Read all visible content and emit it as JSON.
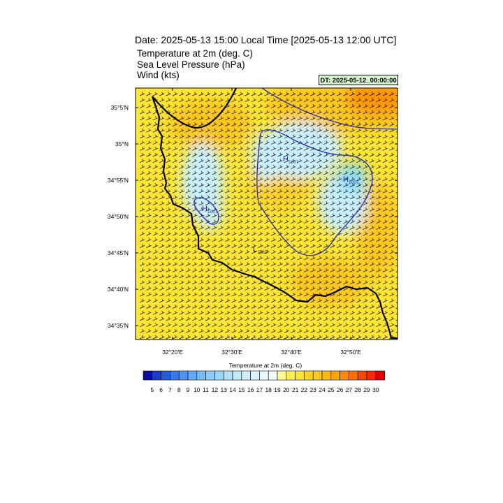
{
  "header": {
    "date_line": "Date: 2025-05-13  15:00 Local Time [2025-05-13  12:00 UTC]",
    "field_temperature": "Temperature at 2m   (deg. C)",
    "field_pressure": "Sea Level Pressure   (hPa)",
    "field_wind": "Wind   (kts)",
    "dt_badge": "DT: 2025-05-12_00:00:00"
  },
  "map": {
    "lat_labels": [
      "35°5'N",
      "35°N",
      "34°55'N",
      "34°50'N",
      "34°45'N",
      "34°40'N",
      "34°35'N"
    ],
    "lon_labels": [
      "32°20'E",
      "32°30'E",
      "32°40'E",
      "32°50'E"
    ],
    "pressure_labels": [
      {
        "kind": "H",
        "value": "1007"
      },
      {
        "kind": "H",
        "value": "1007"
      },
      {
        "kind": "H",
        "value": "1007"
      },
      {
        "kind": "L",
        "value": "1007"
      }
    ],
    "colors": {
      "warm_base": "#ffe632",
      "warm_mid": "#ffc81e",
      "warm_hot": "#ff9600",
      "cool_light": "#c8f0ff",
      "cool_mid": "#8cdcf5",
      "isobar": "#2828b4",
      "coast": "#000000"
    }
  },
  "colorbar": {
    "title": "Temperature at 2m  (deg. C)",
    "labels": [
      "5",
      "6",
      "7",
      "8",
      "9",
      "10",
      "11",
      "12",
      "13",
      "14",
      "15",
      "16",
      "17",
      "18",
      "19",
      "20",
      "21",
      "22",
      "23",
      "24",
      "25",
      "26",
      "27",
      "28",
      "29",
      "30"
    ],
    "colors": [
      "#0a0aaa",
      "#1a3ccc",
      "#2a5ae0",
      "#3c78f0",
      "#5094f5",
      "#64aaf8",
      "#78bcf9",
      "#8ccaf8",
      "#9ed6f8",
      "#b0e2fa",
      "#c0eafb",
      "#ceeffb",
      "#dcf4fc",
      "#e8f8fd",
      "#f2fcfe",
      "#fffa96",
      "#fff050",
      "#ffe632",
      "#ffd228",
      "#ffc81e",
      "#ffb914",
      "#ffa50a",
      "#ff8c00",
      "#ff6e00",
      "#ff4600",
      "#ff2800",
      "#e60000"
    ]
  }
}
